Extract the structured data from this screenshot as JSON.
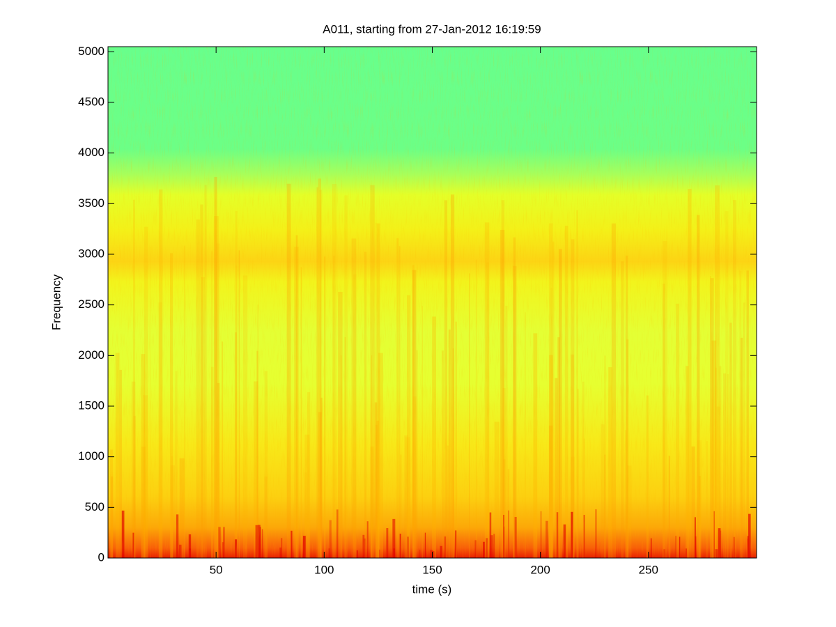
{
  "chart_data": {
    "type": "spectrogram",
    "title": "A011, starting from 27-Jan-2012 16:19:59",
    "x_label": "time (s)",
    "y_label": "Frequency",
    "xlim": [
      0,
      300
    ],
    "xticks": [
      50,
      100,
      150,
      200,
      250
    ],
    "ylim": [
      0,
      5050
    ],
    "yticks": [
      0,
      500,
      1000,
      1500,
      2000,
      2500,
      3000,
      3500,
      4000,
      4500,
      5000
    ]
  }
}
